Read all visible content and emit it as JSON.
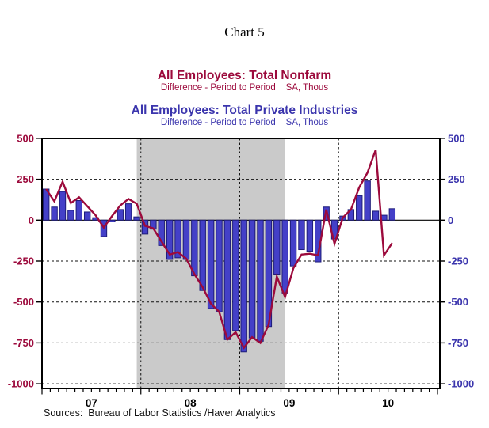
{
  "page": {
    "title": "Chart 5"
  },
  "header": {
    "series1_title": "All Employees: Total Nonfarm",
    "series1_subtitle": "Difference - Period to Period    SA, Thous",
    "series2_title": "All Employees: Total Private Industries",
    "series2_subtitle": "Difference - Period to Period    SA, Thous"
  },
  "footer": {
    "source_note": "Sources:  Bureau of Labor Statistics /Haver Analytics"
  },
  "colors": {
    "nonfarm_red": "#9C0A3C",
    "private_blue_text": "#3B35AD",
    "bar_fill": "#4440C8",
    "bar_border": "#1E1C78",
    "recession_band": "#CACACA",
    "frame": "#000000"
  },
  "chart_data": {
    "type": "bar",
    "title": "Chart 5",
    "x_axis_span": [
      "2007-01",
      "2010-12"
    ],
    "x_year_labels": [
      "07",
      "08",
      "09",
      "10"
    ],
    "y_ticks": [
      500,
      250,
      0,
      -250,
      -500,
      -750,
      -1000
    ],
    "dashed_y_gridlines": [
      250,
      -250,
      -500,
      -750,
      -1000
    ],
    "ylim": [
      -1000,
      500
    ],
    "grid": "dashed",
    "legend_position": "none",
    "recession_band": {
      "from": "2007-12",
      "to": "2009-06"
    },
    "x": [
      "2007-01",
      "2007-02",
      "2007-03",
      "2007-04",
      "2007-05",
      "2007-06",
      "2007-07",
      "2007-08",
      "2007-09",
      "2007-10",
      "2007-11",
      "2007-12",
      "2008-01",
      "2008-02",
      "2008-03",
      "2008-04",
      "2008-05",
      "2008-06",
      "2008-07",
      "2008-08",
      "2008-09",
      "2008-10",
      "2008-11",
      "2008-12",
      "2009-01",
      "2009-02",
      "2009-03",
      "2009-04",
      "2009-05",
      "2009-06",
      "2009-07",
      "2009-08",
      "2009-09",
      "2009-10",
      "2009-11",
      "2009-12",
      "2010-01",
      "2010-02",
      "2010-03",
      "2010-04",
      "2010-05",
      "2010-06",
      "2010-07"
    ],
    "series": [
      {
        "name": "All Employees: Total Nonfarm (Difference - Period to Period, SA, Thous)",
        "type": "line",
        "color": "#9C0A3C",
        "values": [
          190,
          115,
          235,
          105,
          140,
          85,
          30,
          -45,
          25,
          90,
          130,
          100,
          -35,
          -50,
          -130,
          -210,
          -195,
          -235,
          -330,
          -410,
          -510,
          -560,
          -730,
          -685,
          -780,
          -715,
          -750,
          -640,
          -345,
          -470,
          -295,
          -210,
          -205,
          -215,
          65,
          -145,
          15,
          65,
          200,
          290,
          430,
          -215,
          -140
        ]
      },
      {
        "name": "All Employees: Total Private Industries (Difference - Period to Period, SA, Thous)",
        "type": "bar",
        "color": "#4440C8",
        "values": [
          190,
          80,
          175,
          60,
          120,
          50,
          15,
          -100,
          -10,
          65,
          100,
          20,
          -85,
          -55,
          -155,
          -240,
          -230,
          -240,
          -340,
          -430,
          -540,
          -560,
          -730,
          -675,
          -805,
          -720,
          -740,
          -650,
          -330,
          -445,
          -280,
          -180,
          -190,
          -255,
          80,
          -115,
          25,
          65,
          150,
          240,
          55,
          30,
          70
        ]
      }
    ]
  }
}
